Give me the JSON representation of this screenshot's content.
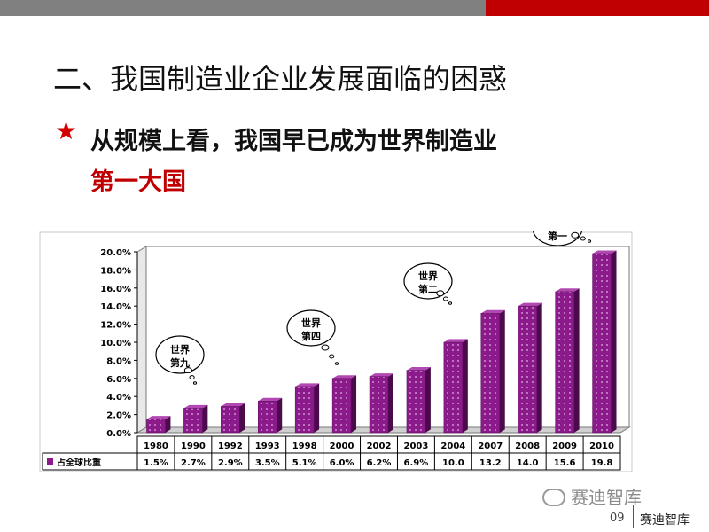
{
  "slide": {
    "title": "二、我国制造业企业发展面临的困惑",
    "bullet_icon": "star-icon",
    "bullet_text": "从规模上看，我国早已成为世界制造业",
    "bullet_text_line2": "第一大国",
    "page_number": "09",
    "brand": "赛迪智库",
    "watermark": "赛迪智库"
  },
  "colors": {
    "bar": "#8b1a8b",
    "bar_side": "#4b0a4b",
    "bar_top": "#b248b2",
    "accent_red": "#c00000"
  },
  "chart_data": {
    "type": "bar",
    "categories": [
      "1980",
      "1990",
      "1992",
      "1993",
      "1998",
      "2000",
      "2002",
      "2003",
      "2004",
      "2007",
      "2008",
      "2009",
      "2010"
    ],
    "series": [
      {
        "name": "占全球比重",
        "values": [
          1.5,
          2.7,
          2.9,
          3.5,
          5.1,
          6.0,
          6.2,
          6.9,
          10.0,
          13.2,
          14.0,
          15.6,
          19.8
        ]
      }
    ],
    "value_labels": [
      "1.5%",
      "2.7%",
      "2.9%",
      "3.5%",
      "5.1%",
      "6.0%",
      "6.2%",
      "6.9%",
      "10.0",
      "13.2",
      "14.0",
      "15.6",
      "19.8"
    ],
    "ytick_labels": [
      "0.0%",
      "2.0%",
      "4.0%",
      "6.0%",
      "8.0%",
      "10.0%",
      "12.0%",
      "14.0%",
      "16.0%",
      "18.0%",
      "20.0%"
    ],
    "ylim": [
      0,
      20
    ],
    "grid": false,
    "legend": "data-table",
    "annotations": [
      {
        "text": [
          "世界",
          "第九"
        ],
        "category": "1990"
      },
      {
        "text": [
          "世界",
          "第四"
        ],
        "category": "2000"
      },
      {
        "text": [
          "世界",
          "第二"
        ],
        "category": "2007"
      },
      {
        "text": [
          "世界",
          "第一"
        ],
        "category": "2010"
      }
    ]
  }
}
